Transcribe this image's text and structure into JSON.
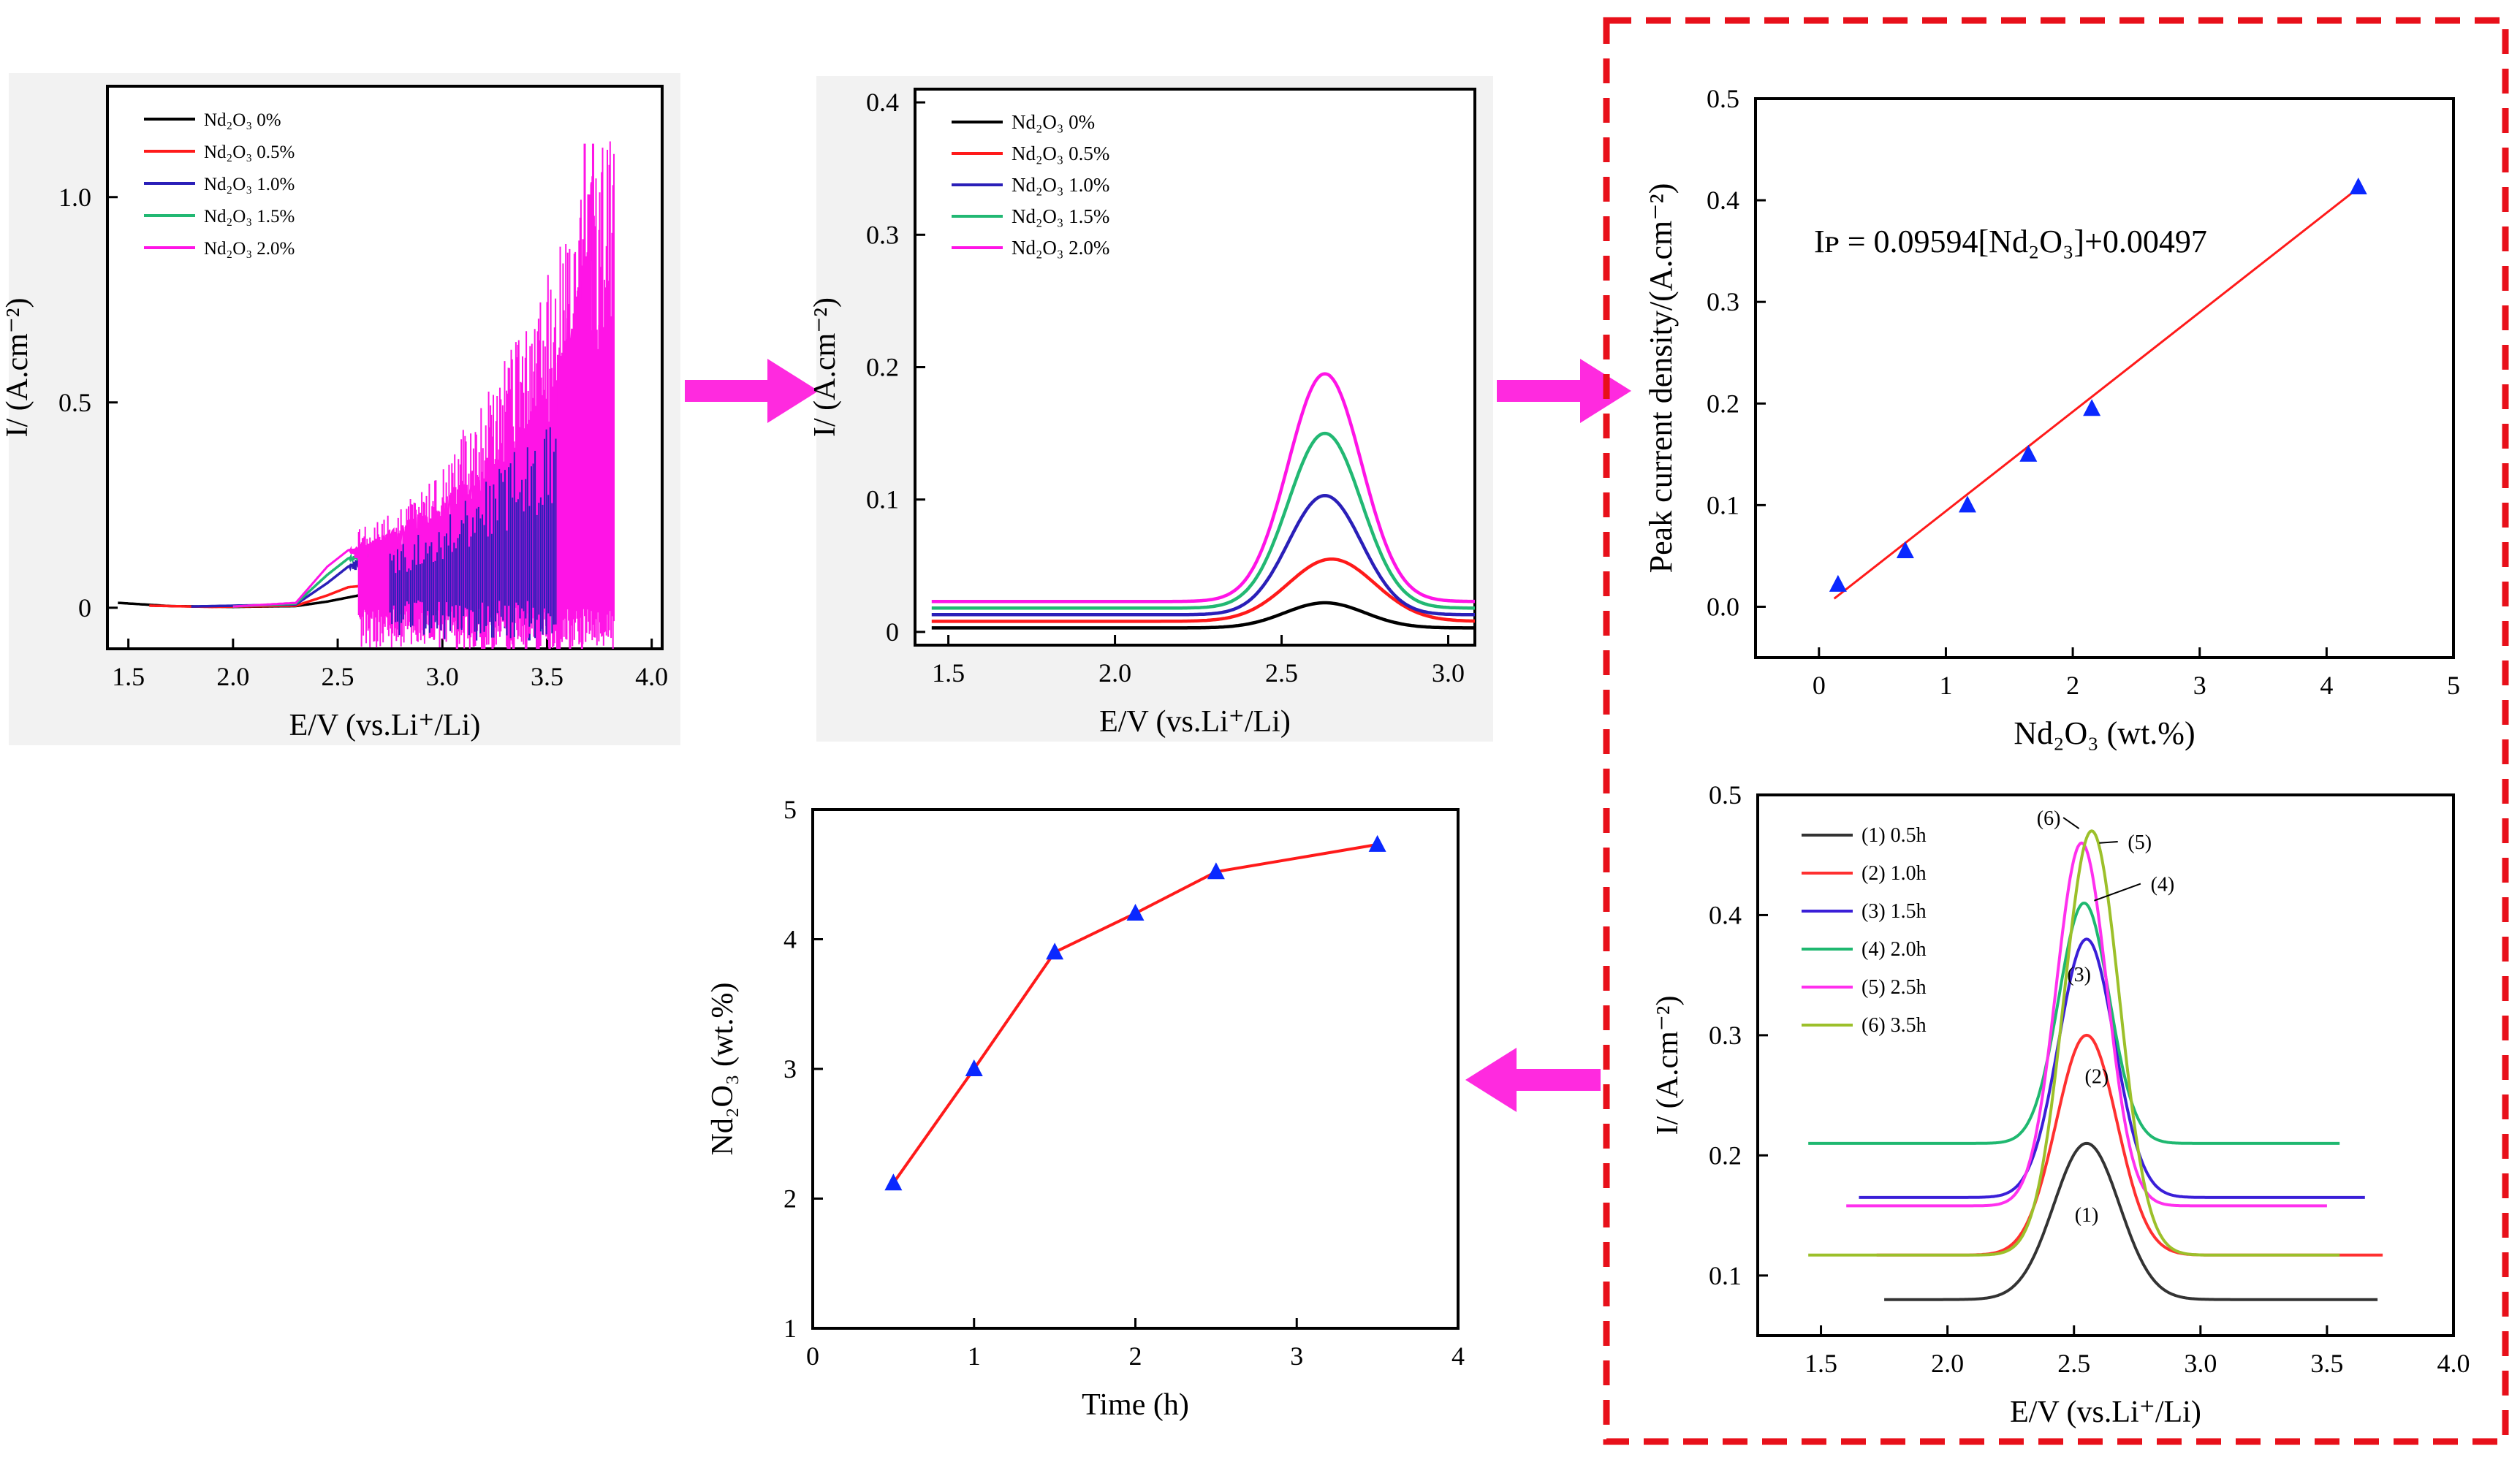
{
  "chart_data": [
    {
      "id": "cv_raw",
      "type": "line",
      "xlabel": "E/V (vs.Li⁺/Li)",
      "ylabel": "I/ (A.cm⁻²)",
      "xlim": [
        1.4,
        4.05
      ],
      "ylim": [
        -0.1,
        1.27
      ],
      "xticks": [
        1.5,
        2.0,
        2.5,
        3.0,
        3.5,
        4.0
      ],
      "xtick_labels": [
        "1.5",
        "2.0",
        "2.5",
        "3.0",
        "3.5",
        "4.0"
      ],
      "yticks": [
        0,
        0.5,
        1.0
      ],
      "ytick_labels": [
        "0",
        "0.5",
        "1.0"
      ],
      "legend_position": "top-left",
      "series": [
        {
          "name": "Nd₂O₃ 0%",
          "color": "#000000",
          "points": [
            [
              1.45,
              0.012
            ],
            [
              1.7,
              0.004
            ],
            [
              2.0,
              0.002
            ],
            [
              2.3,
              0.004
            ],
            [
              2.45,
              0.015
            ],
            [
              2.6,
              0.03
            ],
            [
              2.7,
              0.028
            ],
            [
              2.8,
              0.015
            ],
            [
              2.85,
              0.006
            ]
          ]
        },
        {
          "name": "Nd₂O₃ 0.5%",
          "color": "#ff1a1a",
          "points": [
            [
              1.6,
              0.005
            ],
            [
              1.9,
              0.002
            ],
            [
              2.3,
              0.005
            ],
            [
              2.45,
              0.03
            ],
            [
              2.55,
              0.05
            ],
            [
              2.65,
              0.055
            ],
            [
              2.75,
              0.05
            ],
            [
              2.85,
              0.035
            ]
          ]
        },
        {
          "name": "Nd₂O₃ 1.0%",
          "color": "#2a1fb8",
          "points": [
            [
              1.8,
              0.003
            ],
            [
              2.3,
              0.008
            ],
            [
              2.45,
              0.06
            ],
            [
              2.55,
              0.1
            ],
            [
              2.65,
              0.13
            ],
            [
              2.75,
              0.14
            ],
            [
              2.85,
              0.16
            ],
            [
              3.0,
              0.2
            ],
            [
              3.2,
              0.28
            ],
            [
              3.4,
              0.36
            ],
            [
              3.55,
              0.44
            ]
          ]
        },
        {
          "name": "Nd₂O₃ 1.5%",
          "color": "#22b873",
          "points": [
            [
              2.0,
              0.003
            ],
            [
              2.3,
              0.01
            ],
            [
              2.45,
              0.08
            ],
            [
              2.55,
              0.12
            ],
            [
              2.65,
              0.14
            ],
            [
              2.75,
              0.13
            ]
          ]
        },
        {
          "name": "Nd₂O₃ 2.0%",
          "color": "#ff14e6",
          "points": [
            [
              2.0,
              0.003
            ],
            [
              2.3,
              0.012
            ],
            [
              2.45,
              0.1
            ],
            [
              2.55,
              0.14
            ],
            [
              2.65,
              0.16
            ],
            [
              2.8,
              0.2
            ],
            [
              3.0,
              0.27
            ],
            [
              3.2,
              0.36
            ],
            [
              3.4,
              0.46
            ],
            [
              3.55,
              0.62
            ],
            [
              3.65,
              0.8
            ],
            [
              3.72,
              1.13
            ]
          ]
        }
      ]
    },
    {
      "id": "cv_smoothed",
      "type": "line",
      "xlabel": "E/V (vs.Li⁺/Li)",
      "ylabel": "I/ (A.cm⁻²)",
      "xlim": [
        1.4,
        3.08
      ],
      "ylim": [
        -0.01,
        0.41
      ],
      "xticks": [
        1.5,
        2.0,
        2.5,
        3.0
      ],
      "xtick_labels": [
        "1.5",
        "2.0",
        "2.5",
        "3.0"
      ],
      "yticks": [
        0,
        0.1,
        0.2,
        0.3,
        0.4
      ],
      "ytick_labels": [
        "0",
        "0.1",
        "0.2",
        "0.3",
        "0.4"
      ],
      "legend_position": "top-left",
      "series": [
        {
          "name": "Nd₂O₃ 0%",
          "color": "#000000",
          "baseline": 0.003,
          "peak_x": 2.63,
          "peak_y": 0.022,
          "width": 0.12
        },
        {
          "name": "Nd₂O₃ 0.5%",
          "color": "#ff1a1a",
          "baseline": 0.008,
          "peak_x": 2.65,
          "peak_y": 0.055,
          "width": 0.13
        },
        {
          "name": "Nd₂O₃ 1.0%",
          "color": "#2a1fb8",
          "baseline": 0.013,
          "peak_x": 2.63,
          "peak_y": 0.103,
          "width": 0.11
        },
        {
          "name": "Nd₂O₃ 1.5%",
          "color": "#22b873",
          "baseline": 0.018,
          "peak_x": 2.63,
          "peak_y": 0.15,
          "width": 0.11
        },
        {
          "name": "Nd₂O₃ 2.0%",
          "color": "#ff14e6",
          "baseline": 0.023,
          "peak_x": 2.63,
          "peak_y": 0.195,
          "width": 0.11
        }
      ]
    },
    {
      "id": "calibration",
      "type": "scatter",
      "xlabel": "Nd₂O₃ (wt.%)",
      "ylabel": "Peak current density/(A.cm⁻²)",
      "xlim": [
        -0.5,
        5
      ],
      "ylim": [
        -0.05,
        0.5
      ],
      "xticks": [
        0,
        1,
        2,
        3,
        4,
        5
      ],
      "xtick_labels": [
        "0",
        "1",
        "2",
        "3",
        "4",
        "5"
      ],
      "yticks": [
        0.0,
        0.1,
        0.2,
        0.3,
        0.4,
        0.5
      ],
      "ytick_labels": [
        "0.0",
        "0.1",
        "0.2",
        "0.3",
        "0.4",
        "0.5"
      ],
      "x": [
        0.15,
        0.68,
        1.17,
        1.65,
        2.15,
        4.25
      ],
      "y": [
        0.022,
        0.055,
        0.1,
        0.15,
        0.195,
        0.413
      ],
      "marker_color": "#0a28ff",
      "fit_line": {
        "x": [
          0.12,
          4.28
        ],
        "y": [
          0.008,
          0.415
        ],
        "color": "#ff1a1a"
      },
      "annotation": "Iᴘ = 0.09594[Nd₂O₃]+0.00497"
    },
    {
      "id": "cv_time",
      "type": "line",
      "xlabel": "E/V (vs.Li⁺/Li)",
      "ylabel": "I/ (A.cm⁻²)",
      "xlim": [
        1.25,
        4.0
      ],
      "ylim": [
        0.05,
        0.5
      ],
      "xticks": [
        1.5,
        2.0,
        2.5,
        3.0,
        3.5,
        4.0
      ],
      "xtick_labels": [
        "1.5",
        "2.0",
        "2.5",
        "3.0",
        "3.5",
        "4.0"
      ],
      "yticks": [
        0.1,
        0.2,
        0.3,
        0.4,
        0.5
      ],
      "ytick_labels": [
        "0.1",
        "0.2",
        "0.3",
        "0.4",
        "0.5"
      ],
      "legend_position": "top-left",
      "series": [
        {
          "name": "(1) 0.5h",
          "label": "(1)",
          "color": "#333333",
          "baseline": 0.08,
          "peak_x": 2.55,
          "peak_y": 0.21,
          "width": 0.13,
          "x_range": [
            1.75,
            3.7
          ]
        },
        {
          "name": "(2) 1.0h",
          "label": "(2)",
          "color": "#ff3030",
          "baseline": 0.117,
          "peak_x": 2.55,
          "peak_y": 0.3,
          "width": 0.12,
          "x_range": [
            1.72,
            3.72
          ]
        },
        {
          "name": "(3) 1.5h",
          "label": "(3)",
          "color": "#3a1fd8",
          "baseline": 0.165,
          "peak_x": 2.55,
          "peak_y": 0.38,
          "width": 0.11,
          "x_range": [
            1.65,
            3.65
          ]
        },
        {
          "name": "(4) 2.0h",
          "label": "(4)",
          "color": "#1fb870",
          "baseline": 0.21,
          "peak_x": 2.54,
          "peak_y": 0.41,
          "width": 0.1,
          "x_range": [
            1.45,
            3.55
          ]
        },
        {
          "name": "(5) 2.5h",
          "label": "(5)",
          "color": "#ff30ee",
          "baseline": 0.158,
          "peak_x": 2.53,
          "peak_y": 0.46,
          "width": 0.1,
          "x_range": [
            1.6,
            3.5
          ]
        },
        {
          "name": "(6) 3.5h",
          "label": "(6)",
          "color": "#9cc02a",
          "baseline": 0.117,
          "peak_x": 2.57,
          "peak_y": 0.47,
          "width": 0.11,
          "x_range": [
            1.45,
            3.55
          ]
        }
      ]
    },
    {
      "id": "concentration_time",
      "type": "line",
      "xlabel": "Time (h)",
      "ylabel": "Nd₂O₃ (wt.%)",
      "xlim": [
        0,
        4
      ],
      "ylim": [
        1,
        5
      ],
      "xticks": [
        0,
        1,
        2,
        3,
        4
      ],
      "xtick_labels": [
        "0",
        "1",
        "2",
        "3",
        "4"
      ],
      "yticks": [
        1,
        2,
        3,
        4,
        5
      ],
      "ytick_labels": [
        "1",
        "2",
        "3",
        "4",
        "5"
      ],
      "x": [
        0.5,
        1.0,
        1.5,
        2.0,
        2.5,
        3.5
      ],
      "y": [
        2.12,
        3.0,
        3.9,
        4.2,
        4.52,
        4.73
      ],
      "line_color": "#ff1a1a",
      "marker_color": "#0a28ff"
    }
  ],
  "colors": {
    "arrow": "#ff2adf",
    "dashed_frame": "#e8101a"
  }
}
